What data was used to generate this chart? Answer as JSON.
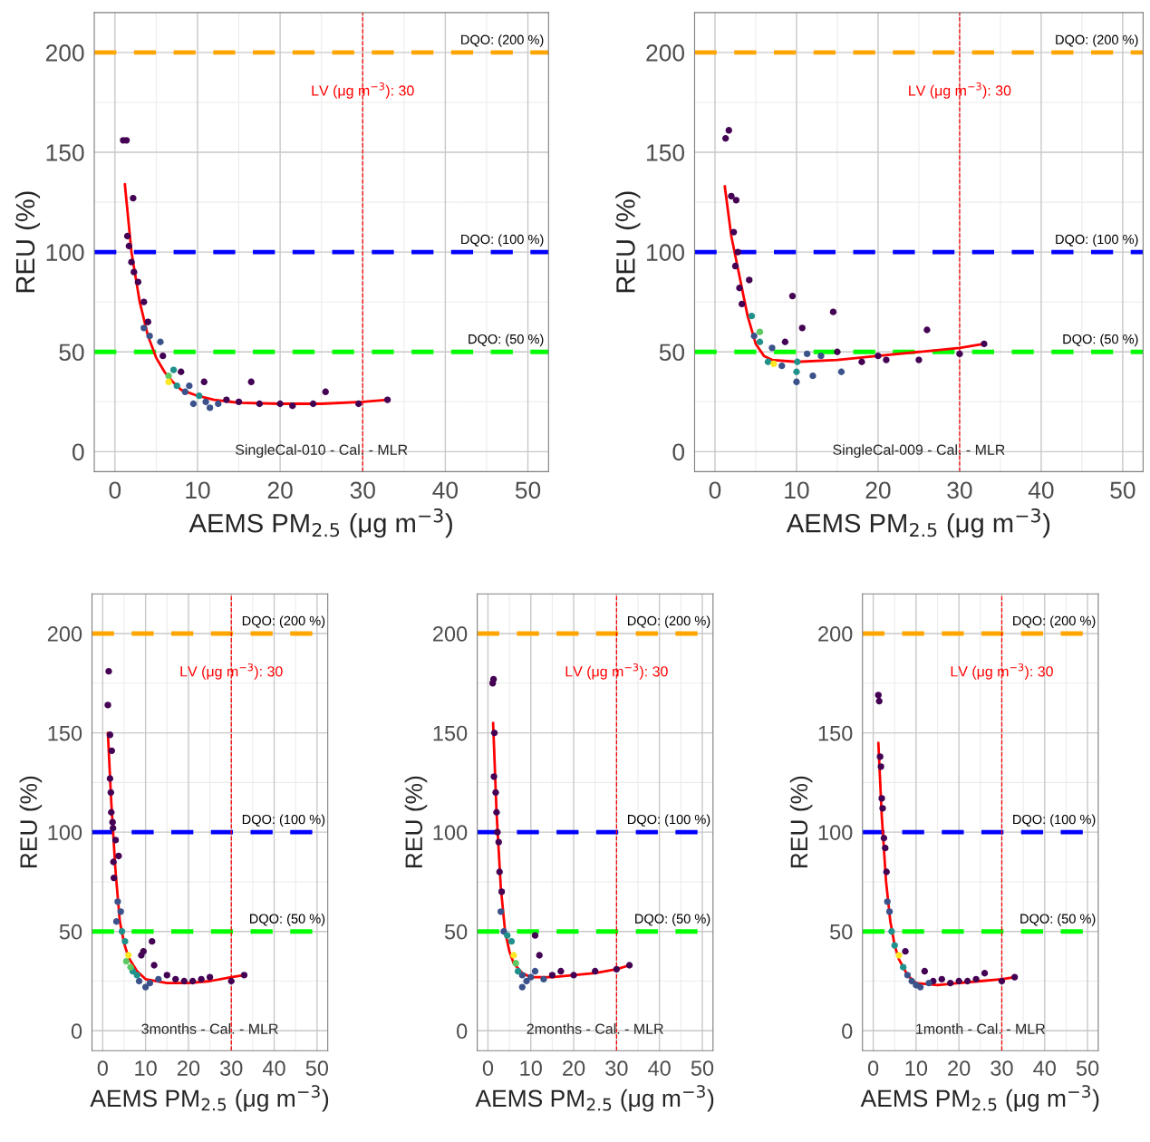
{
  "chart_data": [
    {
      "type": "scatter",
      "xlabel": "AEMS PM$_{2.5}$ (μg m$^{−3}$)",
      "ylabel": "REU (%)",
      "xlim": [
        -2.5,
        52.5
      ],
      "ylim": [
        -10,
        220
      ],
      "xticks": [
        0,
        10,
        20,
        30,
        40,
        50
      ],
      "yticks": [
        0,
        50,
        100,
        150,
        200
      ],
      "grid": true,
      "series": [
        {
          "type": "scatter",
          "color": "#440154",
          "x": [
            1.0,
            1.4,
            1.5,
            2.2,
            1.7,
            2.0,
            2.3,
            2.8,
            3.5,
            4.0,
            5.8,
            8.0,
            10.8,
            13.5,
            15.0,
            16.5,
            17.5,
            20.0,
            21.5,
            24.0,
            25.5,
            29.5,
            33.0
          ],
          "values": [
            156,
            156,
            108,
            127,
            103,
            95,
            90,
            85,
            75,
            65,
            48,
            40,
            35,
            26,
            25,
            35,
            24,
            24,
            23,
            24,
            30,
            24,
            26
          ]
        },
        {
          "type": "scatter",
          "color": "#3b528b",
          "x": [
            3.5,
            4.2,
            5.5,
            8.5,
            9.0,
            11.0,
            12.5,
            11.5,
            9.5
          ],
          "values": [
            62,
            58,
            55,
            30,
            33,
            25,
            24,
            22,
            24
          ]
        },
        {
          "type": "scatter",
          "color": "#21918c",
          "x": [
            7.1,
            7.5,
            10.2
          ],
          "values": [
            41,
            33,
            28
          ]
        },
        {
          "type": "scatter",
          "color": "#5ec962",
          "x": [
            6.5
          ],
          "values": [
            38
          ]
        },
        {
          "type": "scatter",
          "color": "#fde725",
          "x": [
            6.5
          ],
          "values": [
            35
          ]
        },
        {
          "type": "line",
          "color": "#ff0000",
          "x": [
            1.2,
            2,
            3,
            4,
            5,
            6,
            7,
            8,
            10,
            12,
            15,
            20,
            25,
            30,
            33
          ],
          "values": [
            134,
            100,
            75,
            58,
            47,
            40,
            35,
            31,
            28,
            26,
            24.5,
            24,
            24,
            25,
            26
          ]
        }
      ],
      "ref_lines": [
        {
          "axis": "y",
          "value": 200,
          "label": "DQO: (200 %)",
          "color": "#ffa500",
          "line_style": "dashed"
        },
        {
          "axis": "y",
          "value": 100,
          "label": "DQO: (100 %)",
          "color": "#0000ff",
          "line_style": "dashed"
        },
        {
          "axis": "y",
          "value": 50,
          "label": "DQO: (50 %)",
          "color": "#00ff00",
          "line_style": "dashed"
        },
        {
          "axis": "x",
          "value": 30,
          "label": "LV (μg m$^{−3}$): 30",
          "color": "#ff0000",
          "line_style": "dashed"
        }
      ],
      "annotations": [
        "SingleCal-010 - Cal. - MLR"
      ]
    },
    {
      "type": "scatter",
      "xlabel": "AEMS PM$_{2.5}$ (μg m$^{−3}$)",
      "ylabel": "REU (%)",
      "xlim": [
        -2.5,
        52.5
      ],
      "ylim": [
        -10,
        220
      ],
      "xticks": [
        0,
        10,
        20,
        30,
        40,
        50
      ],
      "yticks": [
        0,
        50,
        100,
        150,
        200
      ],
      "grid": true,
      "series": [
        {
          "type": "scatter",
          "color": "#440154",
          "x": [
            1.3,
            1.7,
            2.0,
            2.6,
            2.3,
            2.8,
            2.5,
            3.0,
            4.2,
            3.3,
            8.6,
            10.7,
            14.5,
            9.5,
            18.0,
            20.0,
            21.0,
            25.0,
            26.0,
            30.0,
            33.0,
            15.0
          ],
          "values": [
            157,
            161,
            128,
            126,
            110,
            100,
            93,
            82,
            86,
            74,
            55,
            62,
            70,
            78,
            45,
            48,
            46,
            46,
            61,
            49,
            54,
            50
          ]
        },
        {
          "type": "scatter",
          "color": "#3b528b",
          "x": [
            4.8,
            7.0,
            8.2,
            11.3,
            13.0,
            15.5,
            12.0,
            10.0
          ],
          "values": [
            58,
            52,
            43,
            49,
            48,
            40,
            38,
            35
          ]
        },
        {
          "type": "scatter",
          "color": "#21918c",
          "x": [
            4.5,
            5.5,
            6.5,
            10.1,
            10.0
          ],
          "values": [
            68,
            55,
            45,
            45,
            40
          ]
        },
        {
          "type": "scatter",
          "color": "#5ec962",
          "x": [
            5.5
          ],
          "values": [
            60
          ]
        },
        {
          "type": "scatter",
          "color": "#fde725",
          "x": [
            7.2
          ],
          "values": [
            44
          ]
        },
        {
          "type": "line",
          "color": "#ff0000",
          "x": [
            1.2,
            2,
            3,
            4,
            5,
            6,
            7,
            10,
            15,
            20,
            25,
            30,
            33
          ],
          "values": [
            133,
            108,
            88,
            68,
            54,
            48,
            46,
            45,
            46,
            48,
            50,
            52,
            54
          ]
        }
      ],
      "ref_lines": [
        {
          "axis": "y",
          "value": 200,
          "label": "DQO: (200 %)",
          "color": "#ffa500",
          "line_style": "dashed"
        },
        {
          "axis": "y",
          "value": 100,
          "label": "DQO: (100 %)",
          "color": "#0000ff",
          "line_style": "dashed"
        },
        {
          "axis": "y",
          "value": 50,
          "label": "DQO: (50 %)",
          "color": "#00ff00",
          "line_style": "dashed"
        },
        {
          "axis": "x",
          "value": 30,
          "label": "LV (μg m$^{−3}$): 30",
          "color": "#ff0000",
          "line_style": "dashed"
        }
      ],
      "annotations": [
        "SingleCal-009 - Cal. - MLR"
      ]
    },
    {
      "type": "scatter",
      "xlabel": "AEMS PM$_{2.5}$ (μg m$^{−3}$)",
      "ylabel": "REU (%)",
      "xlim": [
        -2.5,
        52.5
      ],
      "ylim": [
        -10,
        220
      ],
      "xticks": [
        0,
        10,
        20,
        30,
        40,
        50
      ],
      "yticks": [
        0,
        50,
        100,
        150,
        200
      ],
      "grid": true,
      "series": [
        {
          "type": "scatter",
          "color": "#440154",
          "x": [
            1.4,
            1.2,
            1.7,
            2.1,
            1.7,
            1.9,
            2.0,
            2.3,
            2.4,
            3.0,
            2.5,
            3.7,
            2.6,
            9.0,
            9.5,
            11.5,
            12.0,
            15.0,
            17.0,
            19.0,
            21.0,
            23.0,
            25.0,
            30.0,
            33.0
          ],
          "values": [
            181,
            164,
            149,
            141,
            127,
            120,
            110,
            105,
            102,
            96,
            85,
            88,
            77,
            38,
            40,
            45,
            33,
            28,
            26,
            25,
            25,
            26,
            27,
            25,
            28
          ]
        },
        {
          "type": "scatter",
          "color": "#3b528b",
          "x": [
            3.5,
            3.2,
            4.2,
            8.5,
            10.0,
            11.0,
            13.0
          ],
          "values": [
            65,
            55,
            60,
            25,
            22,
            24,
            26
          ]
        },
        {
          "type": "scatter",
          "color": "#21918c",
          "x": [
            4.5,
            5.2,
            7.0,
            8.0
          ],
          "values": [
            50,
            45,
            30,
            28
          ]
        },
        {
          "type": "scatter",
          "color": "#5ec962",
          "x": [
            5.5,
            6.5
          ],
          "values": [
            35,
            32
          ]
        },
        {
          "type": "scatter",
          "color": "#fde725",
          "x": [
            6.0
          ],
          "values": [
            38
          ]
        },
        {
          "type": "line",
          "color": "#ff0000",
          "x": [
            1.2,
            2,
            3,
            4,
            5,
            6,
            8,
            10,
            15,
            20,
            25,
            30,
            33
          ],
          "values": [
            150,
            115,
            80,
            55,
            44,
            37,
            30,
            26,
            24,
            24,
            25,
            27,
            28
          ]
        }
      ],
      "ref_lines": [
        {
          "axis": "y",
          "value": 200,
          "label": "DQO: (200 %)",
          "color": "#ffa500",
          "line_style": "dashed"
        },
        {
          "axis": "y",
          "value": 100,
          "label": "DQO: (100 %)",
          "color": "#0000ff",
          "line_style": "dashed"
        },
        {
          "axis": "y",
          "value": 50,
          "label": "DQO: (50 %)",
          "color": "#00ff00",
          "line_style": "dashed"
        },
        {
          "axis": "x",
          "value": 30,
          "label": "LV (μg m$^{−3}$): 30",
          "color": "#ff0000",
          "line_style": "dashed"
        }
      ],
      "annotations": [
        "3months - Cal. - MLR"
      ]
    },
    {
      "type": "scatter",
      "xlabel": "AEMS PM$_{2.5}$ (μg m$^{−3}$)",
      "ylabel": "REU (%)",
      "xlim": [
        -2.5,
        52.5
      ],
      "ylim": [
        -10,
        220
      ],
      "xticks": [
        0,
        10,
        20,
        30,
        40,
        50
      ],
      "yticks": [
        0,
        50,
        100,
        150,
        200
      ],
      "grid": true,
      "series": [
        {
          "type": "scatter",
          "color": "#440154",
          "x": [
            1.1,
            1.3,
            1.5,
            1.4,
            1.8,
            2.0,
            2.2,
            2.5,
            2.7,
            3.2,
            11.0,
            12.0,
            15.0,
            17.0,
            20.0,
            25.0,
            30.0,
            33.0
          ],
          "values": [
            175,
            177,
            150,
            128,
            120,
            110,
            100,
            95,
            80,
            70,
            48,
            38,
            28,
            30,
            28,
            30,
            31,
            33
          ]
        },
        {
          "type": "scatter",
          "color": "#3b528b",
          "x": [
            3.0,
            3.7,
            8.0,
            9.0,
            10.0,
            11.0,
            13.0,
            8.0
          ],
          "values": [
            60,
            50,
            28,
            25,
            27,
            30,
            26,
            22
          ]
        },
        {
          "type": "scatter",
          "color": "#21918c",
          "x": [
            4.5,
            5.5,
            7.0
          ],
          "values": [
            48,
            45,
            30
          ]
        },
        {
          "type": "scatter",
          "color": "#5ec962",
          "x": [
            6.5
          ],
          "values": [
            34
          ]
        },
        {
          "type": "scatter",
          "color": "#fde725",
          "x": [
            6.0
          ],
          "values": [
            38
          ]
        },
        {
          "type": "line",
          "color": "#ff0000",
          "x": [
            1.2,
            2,
            3,
            4,
            5,
            6,
            8,
            10,
            15,
            20,
            25,
            30,
            33
          ],
          "values": [
            155,
            110,
            72,
            50,
            40,
            34,
            29,
            27,
            27,
            28,
            29,
            31,
            33
          ]
        }
      ],
      "ref_lines": [
        {
          "axis": "y",
          "value": 200,
          "label": "DQO: (200 %)",
          "color": "#ffa500",
          "line_style": "dashed"
        },
        {
          "axis": "y",
          "value": 100,
          "label": "DQO: (100 %)",
          "color": "#0000ff",
          "line_style": "dashed"
        },
        {
          "axis": "y",
          "value": 50,
          "label": "DQO: (50 %)",
          "color": "#00ff00",
          "line_style": "dashed"
        },
        {
          "axis": "x",
          "value": 30,
          "label": "LV (μg m$^{−3}$): 30",
          "color": "#ff0000",
          "line_style": "dashed"
        }
      ],
      "annotations": [
        "2months - Cal. - MLR"
      ]
    },
    {
      "type": "scatter",
      "xlabel": "AEMS PM$_{2.5}$ (μg m$^{−3}$)",
      "ylabel": "REU (%)",
      "xlim": [
        -2.5,
        52.5
      ],
      "ylim": [
        -10,
        220
      ],
      "xticks": [
        0,
        10,
        20,
        30,
        40,
        50
      ],
      "yticks": [
        0,
        50,
        100,
        150,
        200
      ],
      "grid": true,
      "series": [
        {
          "type": "scatter",
          "color": "#440154",
          "x": [
            1.2,
            1.4,
            1.6,
            1.8,
            2.0,
            2.2,
            2.5,
            2.8,
            3.1,
            12.0,
            14.0,
            16.0,
            18.0,
            20.0,
            22.0,
            24.0,
            26.0,
            30.0,
            33.0,
            7.5
          ],
          "values": [
            169,
            166,
            138,
            133,
            117,
            112,
            97,
            92,
            80,
            30,
            25,
            26,
            24,
            25,
            25,
            26,
            29,
            25,
            27,
            40
          ]
        },
        {
          "type": "scatter",
          "color": "#3b528b",
          "x": [
            3.3,
            3.8,
            8.0,
            9.0,
            10.0,
            11.0,
            13.0
          ],
          "values": [
            65,
            60,
            28,
            25,
            23,
            22,
            24
          ]
        },
        {
          "type": "scatter",
          "color": "#21918c",
          "x": [
            4.3,
            5.0,
            7.0
          ],
          "values": [
            50,
            43,
            32
          ]
        },
        {
          "type": "scatter",
          "color": "#fde725",
          "x": [
            6.0
          ],
          "values": [
            38
          ]
        },
        {
          "type": "line",
          "color": "#ff0000",
          "x": [
            1.2,
            2,
            3,
            4,
            5,
            6,
            8,
            10,
            15,
            20,
            25,
            30,
            33
          ],
          "values": [
            145,
            108,
            75,
            55,
            43,
            36,
            28,
            24,
            23,
            24,
            25,
            26,
            27
          ]
        }
      ],
      "ref_lines": [
        {
          "axis": "y",
          "value": 200,
          "label": "DQO: (200 %)",
          "color": "#ffa500",
          "line_style": "dashed"
        },
        {
          "axis": "y",
          "value": 100,
          "label": "DQO: (100 %)",
          "color": "#0000ff",
          "line_style": "dashed"
        },
        {
          "axis": "y",
          "value": 50,
          "label": "DQO: (50 %)",
          "color": "#00ff00",
          "line_style": "dashed"
        },
        {
          "axis": "x",
          "value": 30,
          "label": "LV (μg m$^{−3}$): 30",
          "color": "#ff0000",
          "line_style": "dashed"
        }
      ],
      "annotations": [
        "1month - Cal. - MLR"
      ]
    }
  ]
}
